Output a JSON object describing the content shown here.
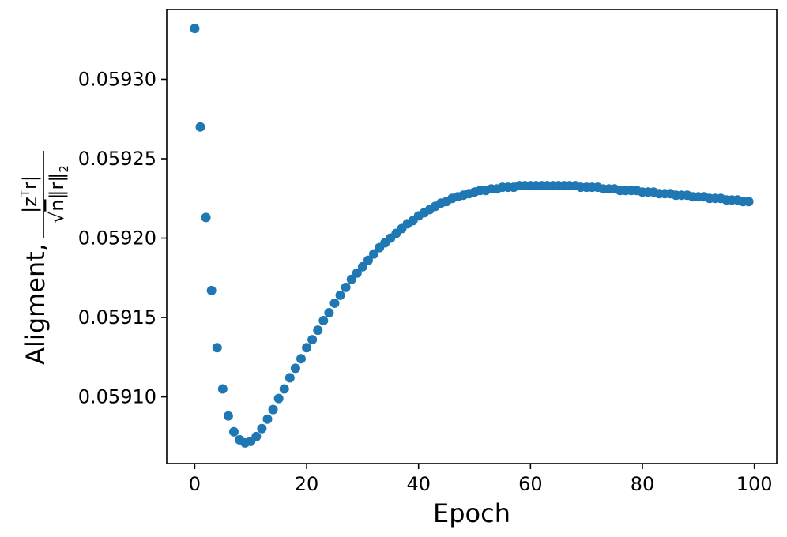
{
  "chart_data": {
    "type": "scatter",
    "title": "",
    "xlabel": "Epoch",
    "ylabel_text": "Aligment,",
    "ylabel_fraction": {
      "numerator": "|z",
      "numerator_sup": "T",
      "numerator_end": "r|",
      "denominator_sqrt": "√",
      "denominator_n": "n",
      "denominator_norm": "‖r‖",
      "denominator_sub": "2"
    },
    "xlim": [
      -5,
      104
    ],
    "ylim": [
      0.059058,
      0.059344
    ],
    "x_ticks": [
      0,
      20,
      40,
      60,
      80,
      100
    ],
    "y_ticks": [
      0.0591,
      0.05915,
      0.0592,
      0.05925,
      0.0593
    ],
    "x_tick_labels": [
      "0",
      "20",
      "40",
      "60",
      "80",
      "100"
    ],
    "y_tick_labels": [
      "0.05910",
      "0.05915",
      "0.05920",
      "0.05925",
      "0.05930"
    ],
    "grid": false,
    "marker_color": "#1f77b4",
    "series": [
      {
        "x": [
          0,
          1,
          2,
          3,
          4,
          5,
          6,
          7,
          8,
          9,
          10,
          11,
          12,
          13,
          14,
          15,
          16,
          17,
          18,
          19,
          20,
          21,
          22,
          23,
          24,
          25,
          26,
          27,
          28,
          29,
          30,
          31,
          32,
          33,
          34,
          35,
          36,
          37,
          38,
          39,
          40,
          41,
          42,
          43,
          44,
          45,
          46,
          47,
          48,
          49,
          50,
          51,
          52,
          53,
          54,
          55,
          56,
          57,
          58,
          59,
          60,
          61,
          62,
          63,
          64,
          65,
          66,
          67,
          68,
          69,
          70,
          71,
          72,
          73,
          74,
          75,
          76,
          77,
          78,
          79,
          80,
          81,
          82,
          83,
          84,
          85,
          86,
          87,
          88,
          89,
          90,
          91,
          92,
          93,
          94,
          95,
          96,
          97,
          98,
          99
        ],
        "y": [
          0.059332,
          0.05927,
          0.059213,
          0.059167,
          0.059131,
          0.059105,
          0.059088,
          0.059078,
          0.059073,
          0.059071,
          0.059072,
          0.059075,
          0.05908,
          0.059086,
          0.059092,
          0.059099,
          0.059105,
          0.059112,
          0.059118,
          0.059124,
          0.059131,
          0.059136,
          0.059142,
          0.059148,
          0.059153,
          0.059159,
          0.059164,
          0.059169,
          0.059174,
          0.059178,
          0.059182,
          0.059186,
          0.05919,
          0.059194,
          0.059197,
          0.0592,
          0.059203,
          0.059206,
          0.059209,
          0.059211,
          0.059214,
          0.059216,
          0.059218,
          0.05922,
          0.059222,
          0.059223,
          0.059225,
          0.059226,
          0.059227,
          0.059228,
          0.059229,
          0.05923,
          0.05923,
          0.059231,
          0.059231,
          0.059232,
          0.059232,
          0.059232,
          0.059233,
          0.059233,
          0.059233,
          0.059233,
          0.059233,
          0.059233,
          0.059233,
          0.059233,
          0.059233,
          0.059233,
          0.059233,
          0.059232,
          0.059232,
          0.059232,
          0.059232,
          0.059231,
          0.059231,
          0.059231,
          0.05923,
          0.05923,
          0.05923,
          0.05923,
          0.059229,
          0.059229,
          0.059229,
          0.059228,
          0.059228,
          0.059228,
          0.059227,
          0.059227,
          0.059227,
          0.059226,
          0.059226,
          0.059226,
          0.059225,
          0.059225,
          0.059225,
          0.059224,
          0.059224,
          0.059224,
          0.059223,
          0.059223
        ]
      }
    ]
  }
}
